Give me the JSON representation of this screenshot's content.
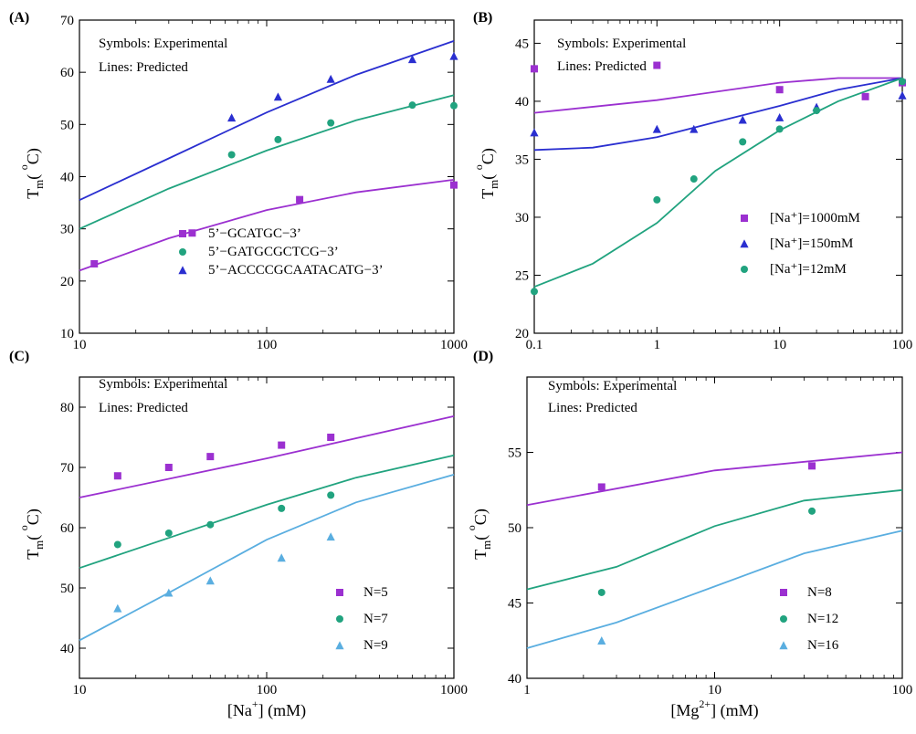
{
  "chart_data": [
    {
      "id": "A",
      "panel_label": "(A)",
      "type": "scatter",
      "xscale": "log",
      "xlim": [
        10,
        1000
      ],
      "ylim": [
        10,
        70
      ],
      "xticks": [
        10,
        100,
        1000
      ],
      "xtick_labels": [
        "10",
        "100",
        "1000"
      ],
      "yticks": [
        10,
        20,
        30,
        40,
        50,
        60,
        70
      ],
      "ytick_labels": [
        "10",
        "20",
        "30",
        "40",
        "50",
        "60",
        "70"
      ],
      "ylabel_main": "T",
      "ylabel_sub": "m",
      "ylabel_rest": "( ",
      "ylabel_sup": "o",
      "ylabel_end": "C)",
      "xlabel_pre": "",
      "xlabel_sup": "",
      "xlabel_post": "",
      "annotations": [
        "Symbols: Experimental",
        "Lines: Predicted"
      ],
      "legend_position": "bottom-right",
      "series": [
        {
          "name": "5’−GCATGC−3’",
          "color": "#9b30d0",
          "marker": "square",
          "points": [
            [
              12,
              23.3
            ],
            [
              40,
              29.2
            ],
            [
              150,
              35.6
            ],
            [
              1000,
              38.4
            ]
          ],
          "line": [
            [
              10,
              22.0
            ],
            [
              30,
              28.2
            ],
            [
              100,
              33.6
            ],
            [
              300,
              37.0
            ],
            [
              1000,
              39.4
            ]
          ]
        },
        {
          "name": "5’−GATGCGCTCG−3’",
          "color": "#21a37f",
          "marker": "circle",
          "points": [
            [
              65,
              44.2
            ],
            [
              115,
              47.1
            ],
            [
              220,
              50.3
            ],
            [
              600,
              53.7
            ],
            [
              1000,
              53.6
            ]
          ],
          "line": [
            [
              10,
              30.0
            ],
            [
              30,
              37.7
            ],
            [
              100,
              45.0
            ],
            [
              300,
              50.8
            ],
            [
              1000,
              55.6
            ]
          ]
        },
        {
          "name": "5’−ACCCCGCAATACATG−3’",
          "color": "#2a2fd0",
          "marker": "triangle",
          "points": [
            [
              65,
              51.3
            ],
            [
              115,
              55.3
            ],
            [
              220,
              58.7
            ],
            [
              600,
              62.5
            ],
            [
              1000,
              63.1
            ]
          ],
          "line": [
            [
              10,
              35.5
            ],
            [
              30,
              43.5
            ],
            [
              100,
              52.3
            ],
            [
              300,
              59.5
            ],
            [
              1000,
              66.0
            ]
          ]
        }
      ]
    },
    {
      "id": "B",
      "panel_label": "(B)",
      "type": "scatter",
      "xscale": "log",
      "xlim": [
        0.1,
        100
      ],
      "ylim": [
        20,
        47
      ],
      "xticks": [
        0.1,
        1,
        10,
        100
      ],
      "xtick_labels": [
        "0.1",
        "1",
        "10",
        "100"
      ],
      "yticks": [
        20,
        25,
        30,
        35,
        40,
        45
      ],
      "ytick_labels": [
        "20",
        "25",
        "30",
        "35",
        "40",
        "45"
      ],
      "ylabel_main": "T",
      "ylabel_sub": "m",
      "ylabel_rest": "( ",
      "ylabel_sup": "o",
      "ylabel_end": "C)",
      "xlabel_pre": "",
      "xlabel_sup": "",
      "xlabel_post": "",
      "annotations": [
        "Symbols: Experimental",
        "Lines: Predicted"
      ],
      "legend_position": "bottom-right",
      "series": [
        {
          "name": "[Na⁺]=1000mM",
          "color": "#9b30d0",
          "marker": "square",
          "points": [
            [
              0.1,
              42.8
            ],
            [
              1,
              43.1
            ],
            [
              10,
              41.0
            ],
            [
              50,
              40.4
            ],
            [
              100,
              41.6
            ]
          ],
          "line": [
            [
              0.1,
              39.0
            ],
            [
              1,
              40.1
            ],
            [
              10,
              41.6
            ],
            [
              30,
              42.0
            ],
            [
              100,
              42.0
            ]
          ]
        },
        {
          "name": "[Na⁺]=150mM",
          "color": "#2a2fd0",
          "marker": "triangle",
          "points": [
            [
              0.1,
              37.3
            ],
            [
              1,
              37.6
            ],
            [
              2,
              37.6
            ],
            [
              5,
              38.4
            ],
            [
              10,
              38.6
            ],
            [
              20,
              39.5
            ],
            [
              100,
              40.5
            ]
          ],
          "line": [
            [
              0.1,
              35.8
            ],
            [
              0.3,
              36.0
            ],
            [
              1,
              36.9
            ],
            [
              3,
              38.2
            ],
            [
              10,
              39.6
            ],
            [
              30,
              41.0
            ],
            [
              100,
              42.0
            ]
          ]
        },
        {
          "name": "[Na⁺]=12mM",
          "color": "#21a37f",
          "marker": "circle",
          "points": [
            [
              0.1,
              23.6
            ],
            [
              1,
              31.5
            ],
            [
              2,
              33.3
            ],
            [
              5,
              36.5
            ],
            [
              10,
              37.6
            ],
            [
              20,
              39.2
            ],
            [
              100,
              41.7
            ]
          ],
          "line": [
            [
              0.1,
              24.0
            ],
            [
              0.3,
              26.0
            ],
            [
              1,
              29.5
            ],
            [
              3,
              34.0
            ],
            [
              10,
              37.5
            ],
            [
              30,
              40.0
            ],
            [
              100,
              42.0
            ]
          ]
        }
      ]
    },
    {
      "id": "C",
      "panel_label": "(C)",
      "type": "scatter",
      "xscale": "log",
      "xlim": [
        10,
        1000
      ],
      "ylim": [
        35,
        85
      ],
      "xticks": [
        10,
        100,
        1000
      ],
      "xtick_labels": [
        "10",
        "100",
        "1000"
      ],
      "yticks": [
        40,
        50,
        60,
        70,
        80
      ],
      "ytick_labels": [
        "40",
        "50",
        "60",
        "70",
        "80"
      ],
      "ylabel_main": "T",
      "ylabel_sub": "m",
      "ylabel_rest": "( ",
      "ylabel_sup": "o",
      "ylabel_end": "C)",
      "xlabel_pre": "[Na",
      "xlabel_sup": "+",
      "xlabel_post": "] (mM)",
      "annotations": [
        "Symbols: Experimental",
        "Lines: Predicted"
      ],
      "legend_position": "bottom-right",
      "series": [
        {
          "name": "N=5",
          "color": "#9b30d0",
          "marker": "square",
          "points": [
            [
              16,
              68.6
            ],
            [
              30,
              70.0
            ],
            [
              50,
              71.8
            ],
            [
              120,
              73.7
            ],
            [
              220,
              75.0
            ]
          ],
          "line": [
            [
              10,
              65.0
            ],
            [
              100,
              71.5
            ],
            [
              1000,
              78.5
            ]
          ]
        },
        {
          "name": "N=7",
          "color": "#21a37f",
          "marker": "circle",
          "points": [
            [
              16,
              57.2
            ],
            [
              30,
              59.1
            ],
            [
              50,
              60.5
            ],
            [
              120,
              63.2
            ],
            [
              220,
              65.4
            ]
          ],
          "line": [
            [
              10,
              53.3
            ],
            [
              30,
              58.3
            ],
            [
              100,
              63.8
            ],
            [
              300,
              68.3
            ],
            [
              1000,
              72.0
            ]
          ]
        },
        {
          "name": "N=9",
          "color": "#5aaee0",
          "marker": "triangle",
          "points": [
            [
              16,
              46.6
            ],
            [
              30,
              49.2
            ],
            [
              50,
              51.2
            ],
            [
              120,
              55.0
            ],
            [
              220,
              58.5
            ]
          ],
          "line": [
            [
              10,
              41.3
            ],
            [
              30,
              49.2
            ],
            [
              100,
              58.0
            ],
            [
              300,
              64.2
            ],
            [
              1000,
              68.8
            ]
          ]
        }
      ]
    },
    {
      "id": "D",
      "panel_label": "(D)",
      "type": "scatter",
      "xscale": "log",
      "xlim": [
        1,
        100
      ],
      "ylim": [
        40,
        60
      ],
      "xticks": [
        1,
        10,
        100
      ],
      "xtick_labels": [
        "1",
        "10",
        "100"
      ],
      "yticks": [
        40,
        45,
        50,
        55
      ],
      "ytick_labels": [
        "40",
        "45",
        "50",
        "55"
      ],
      "ylabel_main": "T",
      "ylabel_sub": "m",
      "ylabel_rest": "( ",
      "ylabel_sup": "o",
      "ylabel_end": "C)",
      "xlabel_pre": "[Mg",
      "xlabel_sup": "2+",
      "xlabel_post": "] (mM)",
      "annotations": [
        "Symbols: Experimental",
        "Lines: Predicted"
      ],
      "legend_position": "bottom-right",
      "series": [
        {
          "name": "N=8",
          "color": "#9b30d0",
          "marker": "square",
          "points": [
            [
              2.5,
              52.7
            ],
            [
              33,
              54.1
            ]
          ],
          "line": [
            [
              1,
              51.5
            ],
            [
              10,
              53.8
            ],
            [
              100,
              55.0
            ]
          ]
        },
        {
          "name": "N=12",
          "color": "#21a37f",
          "marker": "circle",
          "points": [
            [
              2.5,
              45.7
            ],
            [
              33,
              51.1
            ]
          ],
          "line": [
            [
              1,
              45.9
            ],
            [
              3,
              47.4
            ],
            [
              10,
              50.1
            ],
            [
              30,
              51.8
            ],
            [
              100,
              52.5
            ]
          ]
        },
        {
          "name": "N=16",
          "color": "#5aaee0",
          "marker": "triangle",
          "points": [
            [
              2.5,
              42.5
            ]
          ],
          "line": [
            [
              1,
              42.0
            ],
            [
              3,
              43.7
            ],
            [
              10,
              46.1
            ],
            [
              30,
              48.3
            ],
            [
              100,
              49.8
            ]
          ]
        }
      ]
    }
  ]
}
